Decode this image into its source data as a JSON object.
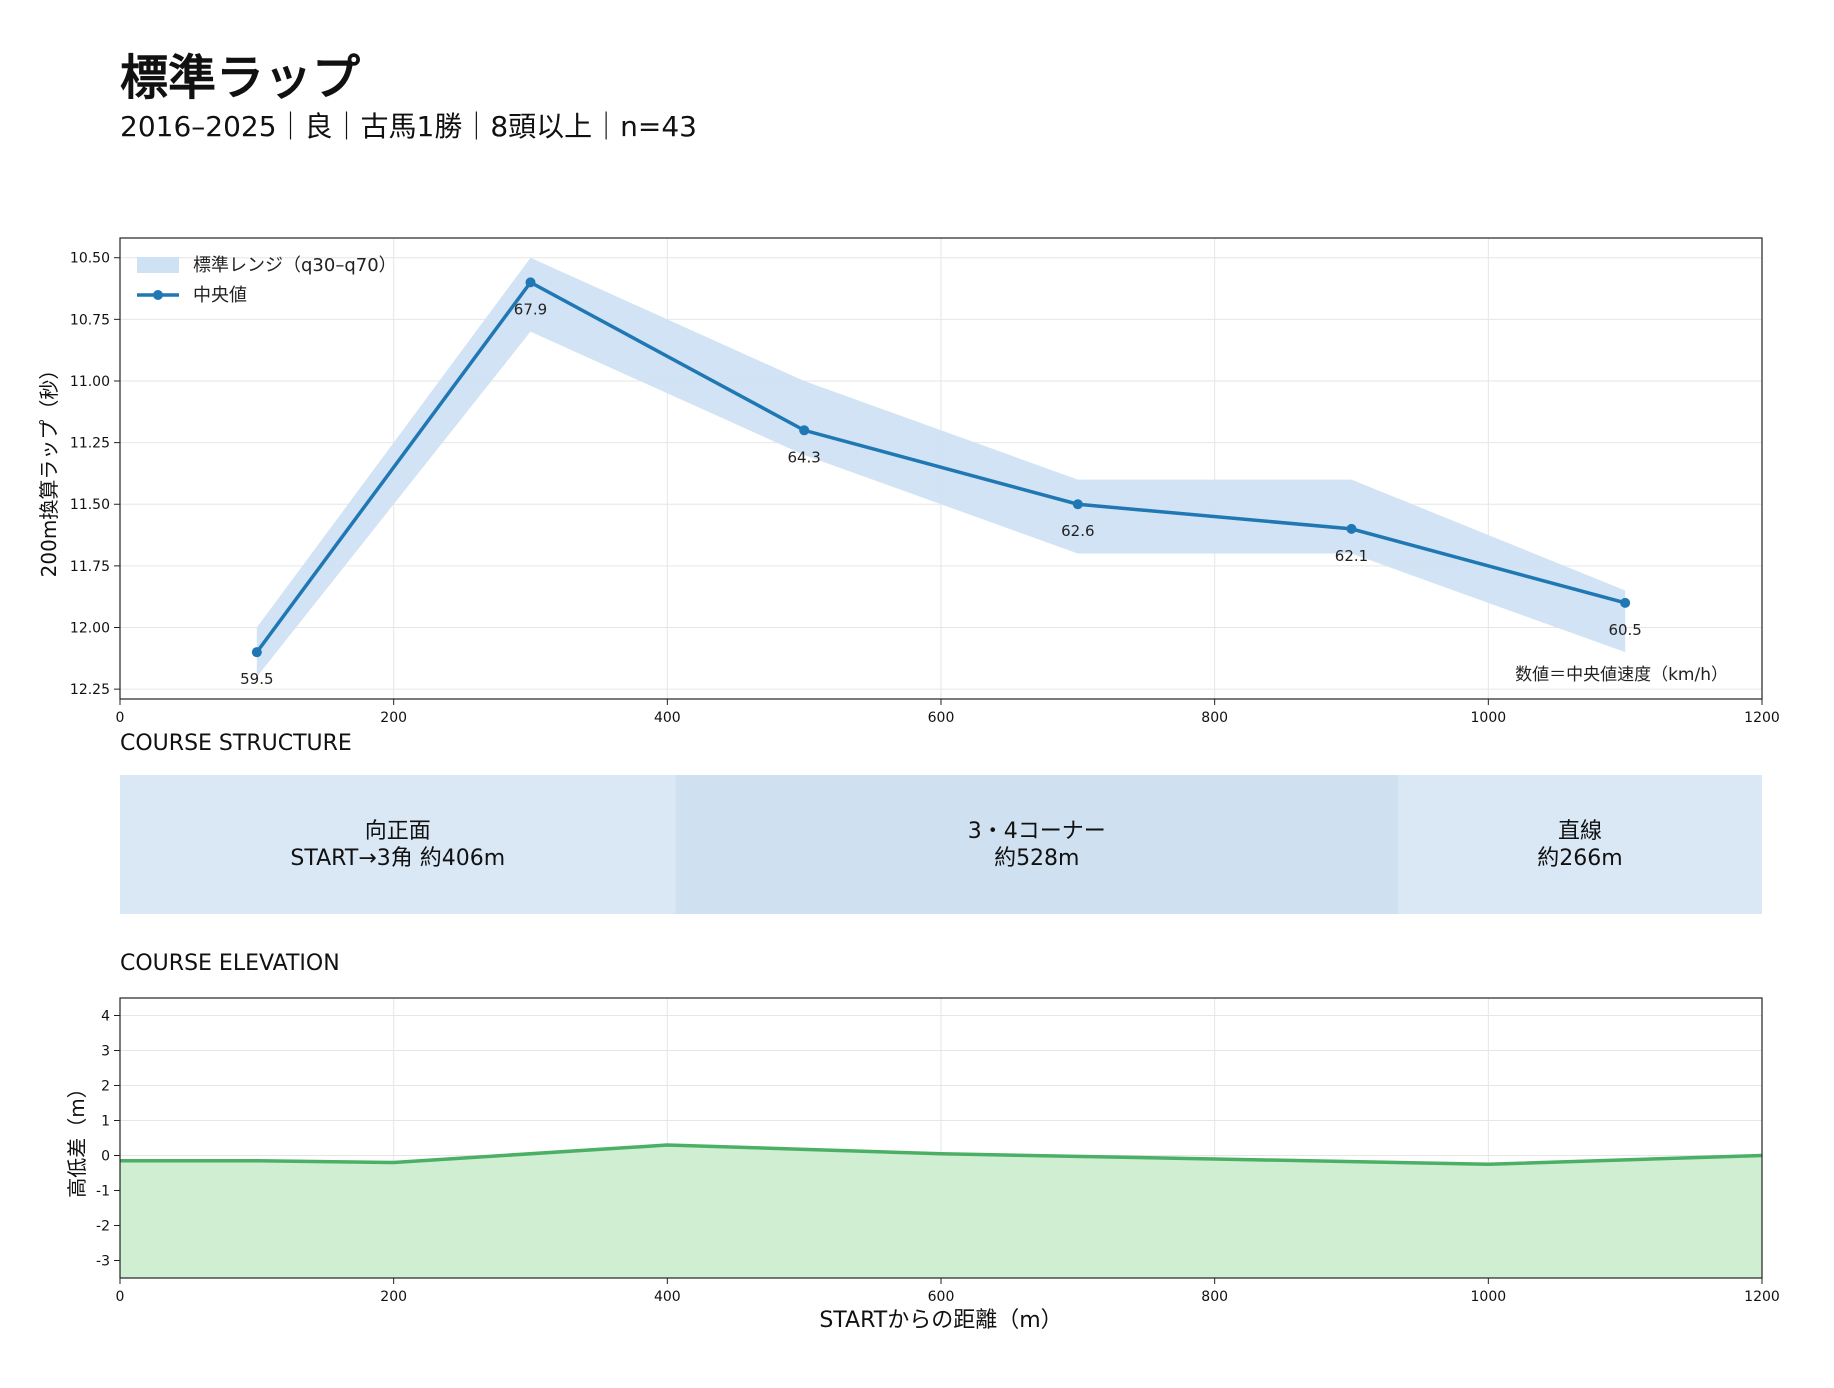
{
  "header": {
    "title": "標準ラップ",
    "subtitle": "2016–2025｜良｜古馬1勝｜8頭以上｜n=43"
  },
  "chart_data": [
    {
      "type": "line",
      "ylabel": "200m換算ラップ（秒）",
      "xlim": [
        0,
        1200
      ],
      "ylim": [
        12.25,
        10.5
      ],
      "y_inverted": true,
      "grid": true,
      "legend_placement": "top-left",
      "x_ticks": [
        0,
        200,
        400,
        600,
        800,
        1000,
        1200
      ],
      "y_ticks": [
        10.5,
        10.75,
        11.0,
        11.25,
        11.5,
        11.75,
        12.0,
        12.25
      ],
      "y_tick_labels": [
        "10.50",
        "10.75",
        "11.00",
        "11.25",
        "11.50",
        "11.75",
        "12.00",
        "12.25"
      ],
      "series": [
        {
          "name": "中央値",
          "color": "#1f77b4",
          "x": [
            100,
            300,
            500,
            700,
            900,
            1100
          ],
          "y": [
            12.1,
            10.6,
            11.2,
            11.5,
            11.6,
            11.9
          ],
          "labels": [
            "59.5",
            "67.9",
            "64.3",
            "62.6",
            "62.1",
            "60.5"
          ]
        }
      ],
      "band": {
        "name": "標準レンジ（q30–q70）",
        "color": "#cfe2f3",
        "x": [
          100,
          300,
          500,
          700,
          900,
          1100
        ],
        "lower": [
          12.0,
          10.5,
          11.0,
          11.4,
          11.4,
          11.85
        ],
        "upper": [
          12.2,
          10.8,
          11.3,
          11.7,
          11.7,
          12.1
        ]
      },
      "annotation": "数値＝中央値速度（km/h）"
    },
    {
      "type": "bar",
      "title": "COURSE STRUCTURE",
      "segments": [
        {
          "line1": "向正面",
          "line2": "START→3角 約406m",
          "start": 0,
          "end": 406,
          "color": "#dae8f5"
        },
        {
          "line1": "3・4コーナー",
          "line2": "約528m",
          "start": 406,
          "end": 934,
          "color": "#cfe1f0"
        },
        {
          "line1": "直線",
          "line2": "約266m",
          "start": 934,
          "end": 1200,
          "color": "#dae8f5"
        }
      ]
    },
    {
      "type": "area",
      "title": "COURSE ELEVATION",
      "xlabel": "STARTからの距離（m）",
      "ylabel": "高低差（m）",
      "xlim": [
        0,
        1200
      ],
      "ylim": [
        -3.5,
        4.5
      ],
      "x_ticks": [
        0,
        200,
        400,
        600,
        800,
        1000,
        1200
      ],
      "y_ticks": [
        4,
        3,
        2,
        1,
        0,
        -1,
        -2,
        -3
      ],
      "y_tick_labels": [
        "4",
        "3",
        "2",
        "1",
        "0",
        "-1",
        "-2",
        "-3"
      ],
      "grid": true,
      "series": [
        {
          "line_color": "#4caf66",
          "fill_color": "#cfeed2",
          "x": [
            0,
            100,
            200,
            400,
            600,
            800,
            1000,
            1200
          ],
          "y": [
            -0.15,
            -0.15,
            -0.2,
            0.3,
            0.05,
            -0.1,
            -0.25,
            0.0
          ]
        }
      ]
    }
  ]
}
